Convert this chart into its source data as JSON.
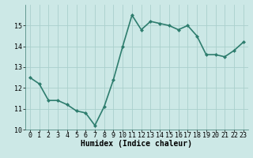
{
  "x": [
    0,
    1,
    2,
    3,
    4,
    5,
    6,
    7,
    8,
    9,
    10,
    11,
    12,
    13,
    14,
    15,
    16,
    17,
    18,
    19,
    20,
    21,
    22,
    23
  ],
  "y": [
    12.5,
    12.2,
    11.4,
    11.4,
    11.2,
    10.9,
    10.8,
    10.2,
    11.1,
    12.4,
    14.0,
    15.5,
    14.8,
    15.2,
    15.1,
    15.0,
    14.8,
    15.0,
    14.5,
    13.6,
    13.6,
    13.5,
    13.8,
    14.2
  ],
  "line_color": "#2e7d6e",
  "marker": "D",
  "marker_size": 2,
  "bg_color": "#cce8e6",
  "grid_color": "#aacfcc",
  "xlabel": "Humidex (Indice chaleur)",
  "ylim": [
    10,
    16
  ],
  "xlim": [
    -0.5,
    23.5
  ],
  "yticks": [
    10,
    11,
    12,
    13,
    14,
    15
  ],
  "xticks": [
    0,
    1,
    2,
    3,
    4,
    5,
    6,
    7,
    8,
    9,
    10,
    11,
    12,
    13,
    14,
    15,
    16,
    17,
    18,
    19,
    20,
    21,
    22,
    23
  ],
  "xlabel_fontsize": 7,
  "tick_fontsize": 6,
  "line_width": 1.2
}
